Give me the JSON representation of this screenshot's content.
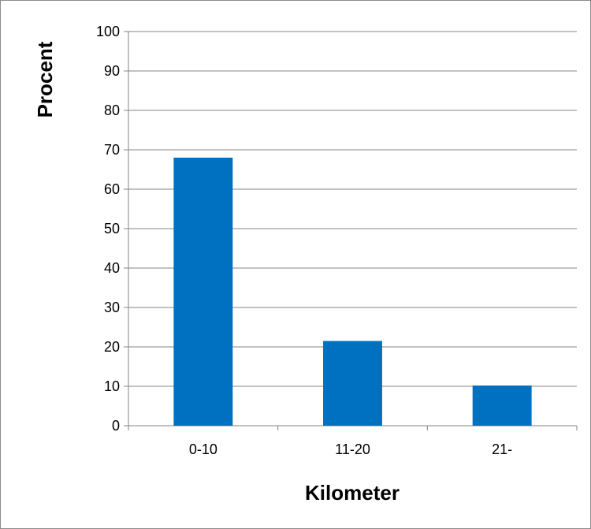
{
  "chart_data": {
    "type": "bar",
    "title": "",
    "xlabel": "Kilometer",
    "ylabel": "Procent",
    "categories": [
      "0-10",
      "11-20",
      "21-"
    ],
    "values": [
      68,
      21.5,
      10.2
    ],
    "ylim": [
      0,
      100
    ],
    "yticks": [
      0,
      10,
      20,
      30,
      40,
      50,
      60,
      70,
      80,
      90,
      100
    ],
    "ytick_labels": [
      "0",
      "10",
      "20",
      "30",
      "40",
      "50",
      "60",
      "70",
      "80",
      "90",
      "100"
    ],
    "grid": true,
    "legend": "none",
    "bar_color": "#0070c0",
    "grid_color": "#868686",
    "axis_color": "#868686"
  }
}
